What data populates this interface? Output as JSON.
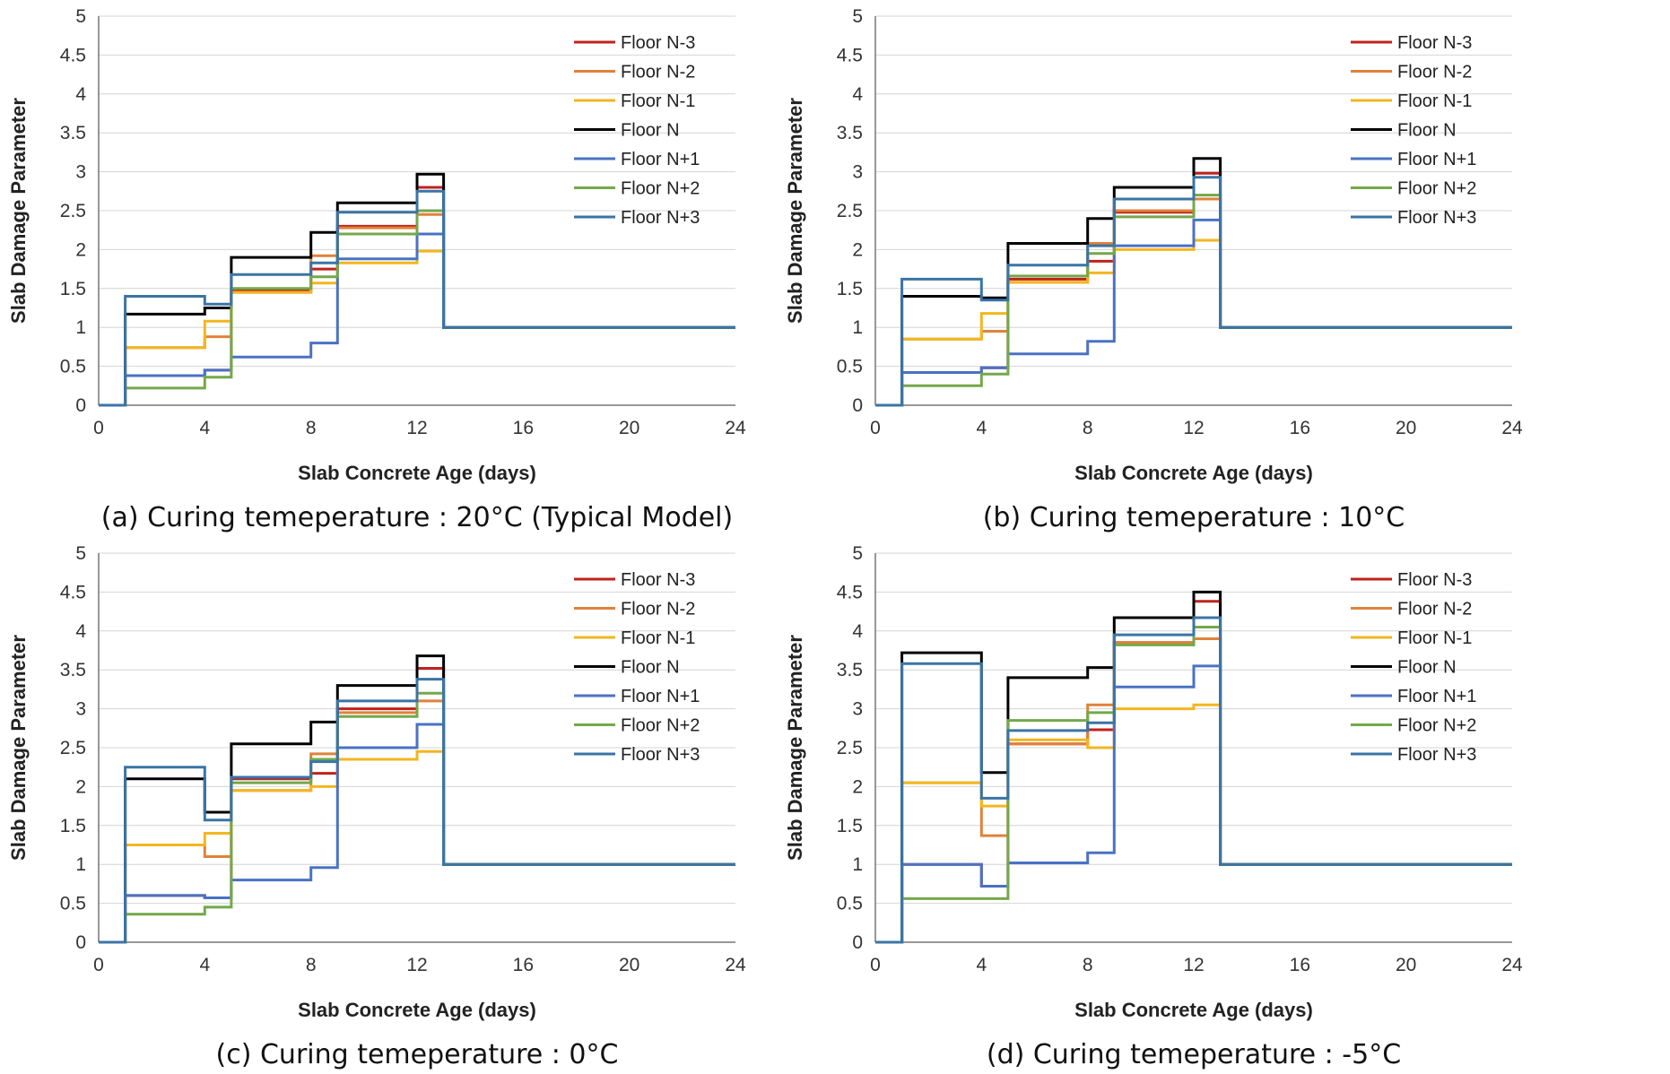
{
  "figure": {
    "legend_position": "top-right",
    "series_colors": {
      "Floor N-3": "#C0221C",
      "Floor N-2": "#E0823A",
      "Floor N-1": "#F2B61F",
      "Floor N": "#000000",
      "Floor N+1": "#4A72C4",
      "Floor N+2": "#74A84A",
      "Floor N+3": "#3A74A6"
    }
  },
  "chart_data": [
    {
      "type": "line",
      "caption": "(a) Curing temeperature : 20°C (Typical Model)",
      "xlabel": "Slab Concrete Age (days)",
      "ylabel": "Slab Damage Parameter",
      "xlim": [
        0,
        24
      ],
      "ylim": [
        0,
        5
      ],
      "xticks": [
        "0",
        "4",
        "8",
        "12",
        "16",
        "20",
        "24"
      ],
      "yticks": [
        "0",
        "0.5",
        "1",
        "1.5",
        "2",
        "2.5",
        "3",
        "3.5",
        "4",
        "4.5",
        "5"
      ],
      "grid": true,
      "step": true,
      "x_breaks": [
        0,
        1,
        4,
        5,
        8,
        9,
        12,
        13,
        24
      ],
      "series": [
        {
          "name": "Floor N-3",
          "values": [
            0,
            0.38,
            0.45,
            1.48,
            1.75,
            2.3,
            2.8,
            1.0
          ]
        },
        {
          "name": "Floor N-2",
          "values": [
            0,
            0.74,
            0.88,
            1.45,
            1.92,
            2.28,
            2.45,
            1.0
          ]
        },
        {
          "name": "Floor N-1",
          "values": [
            0,
            0.74,
            1.08,
            1.45,
            1.57,
            1.83,
            1.98,
            1.0
          ]
        },
        {
          "name": "Floor N",
          "values": [
            0,
            1.17,
            1.25,
            1.9,
            2.22,
            2.6,
            2.97,
            1.0
          ]
        },
        {
          "name": "Floor N+1",
          "values": [
            0,
            0.38,
            0.45,
            0.62,
            0.8,
            1.88,
            2.2,
            1.0
          ]
        },
        {
          "name": "Floor N+2",
          "values": [
            0,
            0.22,
            0.36,
            1.5,
            1.65,
            2.2,
            2.5,
            1.0
          ]
        },
        {
          "name": "Floor N+3",
          "values": [
            0,
            1.4,
            1.3,
            1.68,
            1.83,
            2.48,
            2.75,
            1.0
          ]
        }
      ]
    },
    {
      "type": "line",
      "caption": "(b) Curing temeperature : 10°C",
      "xlabel": "Slab Concrete Age (days)",
      "ylabel": "Slab Damage Parameter",
      "xlim": [
        0,
        24
      ],
      "ylim": [
        0,
        5
      ],
      "xticks": [
        "0",
        "4",
        "8",
        "12",
        "16",
        "20",
        "24"
      ],
      "yticks": [
        "0",
        "0.5",
        "1",
        "1.5",
        "2",
        "2.5",
        "3",
        "3.5",
        "4",
        "4.5",
        "5"
      ],
      "grid": true,
      "step": true,
      "x_breaks": [
        0,
        1,
        4,
        5,
        8,
        9,
        12,
        13,
        24
      ],
      "series": [
        {
          "name": "Floor N-3",
          "values": [
            0,
            0.42,
            0.48,
            1.62,
            1.85,
            2.48,
            2.98,
            1.0
          ]
        },
        {
          "name": "Floor N-2",
          "values": [
            0,
            0.85,
            0.95,
            1.58,
            2.08,
            2.5,
            2.65,
            1.0
          ]
        },
        {
          "name": "Floor N-1",
          "values": [
            0,
            0.85,
            1.18,
            1.58,
            1.7,
            2.0,
            2.12,
            1.0
          ]
        },
        {
          "name": "Floor N",
          "values": [
            0,
            1.4,
            1.38,
            2.08,
            2.4,
            2.8,
            3.17,
            1.0
          ]
        },
        {
          "name": "Floor N+1",
          "values": [
            0,
            0.42,
            0.48,
            0.66,
            0.82,
            2.05,
            2.38,
            1.0
          ]
        },
        {
          "name": "Floor N+2",
          "values": [
            0,
            0.25,
            0.4,
            1.66,
            1.95,
            2.42,
            2.7,
            1.0
          ]
        },
        {
          "name": "Floor N+3",
          "values": [
            0,
            1.62,
            1.35,
            1.8,
            2.05,
            2.65,
            2.93,
            1.0
          ]
        }
      ]
    },
    {
      "type": "line",
      "caption": "(c) Curing temeperature : 0°C",
      "xlabel": "Slab Concrete Age (days)",
      "ylabel": "Slab Damage Parameter",
      "xlim": [
        0,
        24
      ],
      "ylim": [
        0,
        5
      ],
      "xticks": [
        "0",
        "4",
        "8",
        "12",
        "16",
        "20",
        "24"
      ],
      "yticks": [
        "0",
        "0.5",
        "1",
        "1.5",
        "2",
        "2.5",
        "3",
        "3.5",
        "4",
        "4.5",
        "5"
      ],
      "grid": true,
      "step": true,
      "x_breaks": [
        0,
        1,
        4,
        5,
        8,
        9,
        12,
        13,
        24
      ],
      "series": [
        {
          "name": "Floor N-3",
          "values": [
            0,
            0.6,
            0.57,
            2.1,
            2.17,
            3.0,
            3.52,
            1.0
          ]
        },
        {
          "name": "Floor N-2",
          "values": [
            0,
            1.25,
            1.1,
            1.95,
            2.42,
            2.95,
            3.1,
            1.0
          ]
        },
        {
          "name": "Floor N-1",
          "values": [
            0,
            1.25,
            1.4,
            1.95,
            2.0,
            2.35,
            2.45,
            1.0
          ]
        },
        {
          "name": "Floor N",
          "values": [
            0,
            2.1,
            1.67,
            2.55,
            2.83,
            3.3,
            3.68,
            1.0
          ]
        },
        {
          "name": "Floor N+1",
          "values": [
            0,
            0.6,
            0.57,
            0.8,
            0.96,
            2.5,
            2.8,
            1.0
          ]
        },
        {
          "name": "Floor N+2",
          "values": [
            0,
            0.36,
            0.45,
            2.05,
            2.35,
            2.9,
            3.2,
            1.0
          ]
        },
        {
          "name": "Floor N+3",
          "values": [
            0,
            2.25,
            1.57,
            2.12,
            2.32,
            3.1,
            3.38,
            1.0
          ]
        }
      ]
    },
    {
      "type": "line",
      "caption": "(d) Curing temeperature : -5°C",
      "xlabel": "Slab Concrete Age (days)",
      "ylabel": "Slab Damage Parameter",
      "xlim": [
        0,
        24
      ],
      "ylim": [
        0,
        5
      ],
      "xticks": [
        "0",
        "4",
        "8",
        "12",
        "16",
        "20",
        "24"
      ],
      "yticks": [
        "0",
        "0.5",
        "1",
        "1.5",
        "2",
        "2.5",
        "3",
        "3.5",
        "4",
        "4.5",
        "5"
      ],
      "grid": true,
      "step": true,
      "x_breaks": [
        0,
        1,
        4,
        5,
        8,
        9,
        12,
        13,
        24
      ],
      "series": [
        {
          "name": "Floor N-3",
          "values": [
            0,
            1.0,
            0.72,
            2.55,
            2.73,
            3.85,
            4.38,
            1.0
          ]
        },
        {
          "name": "Floor N-2",
          "values": [
            0,
            2.05,
            1.37,
            2.55,
            3.05,
            3.85,
            3.9,
            1.0
          ]
        },
        {
          "name": "Floor N-1",
          "values": [
            0,
            2.05,
            1.75,
            2.6,
            2.5,
            3.0,
            3.05,
            1.0
          ]
        },
        {
          "name": "Floor N",
          "values": [
            0,
            3.72,
            2.18,
            3.4,
            3.53,
            4.17,
            4.5,
            1.0
          ]
        },
        {
          "name": "Floor N+1",
          "values": [
            0,
            1.0,
            0.72,
            1.02,
            1.15,
            3.28,
            3.55,
            1.0
          ]
        },
        {
          "name": "Floor N+2",
          "values": [
            0,
            0.56,
            0.56,
            2.85,
            2.95,
            3.82,
            4.05,
            1.0
          ]
        },
        {
          "name": "Floor N+3",
          "values": [
            0,
            3.58,
            1.85,
            2.72,
            2.82,
            3.95,
            4.17,
            1.0
          ]
        }
      ]
    }
  ]
}
